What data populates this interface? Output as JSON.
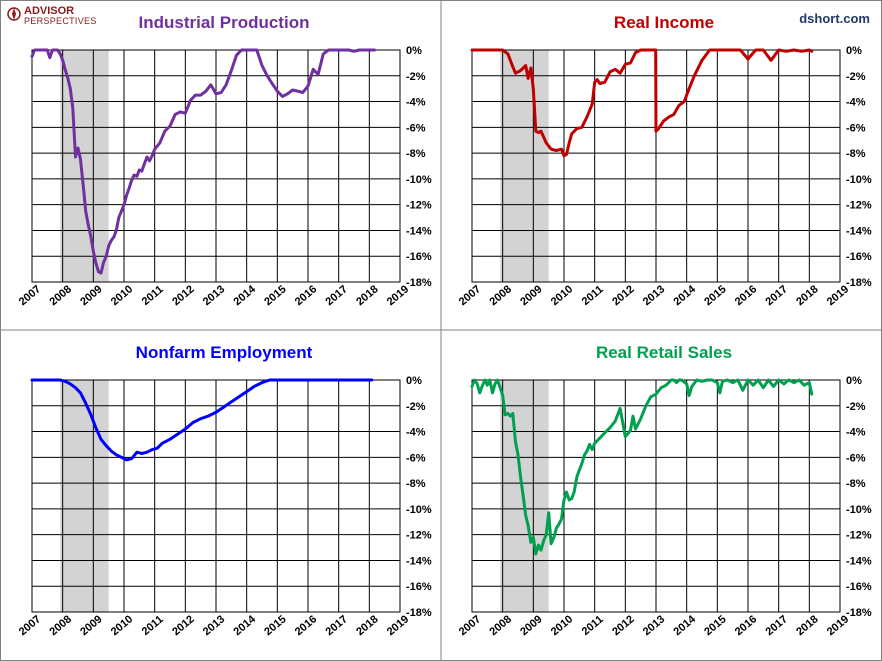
{
  "branding": {
    "logo_line1": "ADVISOR",
    "logo_line2": "PERSPECTIVES",
    "credit": "dshort.com",
    "colors": {
      "logo": "#8b1a1a",
      "credit": "#1f3a6b"
    }
  },
  "recession": {
    "start": 2007.92,
    "end": 2009.5,
    "color": "#d3d3d3"
  },
  "chart_data": [
    {
      "type": "line",
      "title": "Industrial Production",
      "color": "#7030a0",
      "x_ticks": [
        "2007",
        "2008",
        "2009",
        "2010",
        "2011",
        "2012",
        "2013",
        "2014",
        "2015",
        "2016",
        "2017",
        "2018",
        "2019"
      ],
      "y_ticks": [
        "0%",
        "-2%",
        "-4%",
        "-6%",
        "-8%",
        "-10%",
        "-12%",
        "-14%",
        "-16%",
        "-18%"
      ],
      "xlim": [
        2007,
        2019
      ],
      "ylim": [
        -18,
        0
      ],
      "series": [
        {
          "name": "Industrial Production (% off high)",
          "x": [
            2007.0,
            2007.08,
            2007.17,
            2007.25,
            2007.33,
            2007.5,
            2007.58,
            2007.67,
            2007.75,
            2007.83,
            2007.92,
            2008.0,
            2008.08,
            2008.17,
            2008.25,
            2008.33,
            2008.42,
            2008.5,
            2008.58,
            2008.67,
            2008.75,
            2008.83,
            2008.92,
            2009.0,
            2009.08,
            2009.17,
            2009.25,
            2009.33,
            2009.42,
            2009.5,
            2009.58,
            2009.67,
            2009.75,
            2009.83,
            2009.92,
            2010.0,
            2010.08,
            2010.17,
            2010.25,
            2010.33,
            2010.42,
            2010.5,
            2010.58,
            2010.67,
            2010.75,
            2010.83,
            2010.92,
            2011.0,
            2011.17,
            2011.33,
            2011.5,
            2011.67,
            2011.83,
            2012.0,
            2012.17,
            2012.33,
            2012.5,
            2012.67,
            2012.83,
            2013.0,
            2013.17,
            2013.33,
            2013.5,
            2013.67,
            2013.83,
            2014.0,
            2014.17,
            2014.33,
            2014.5,
            2014.67,
            2014.83,
            2015.0,
            2015.17,
            2015.33,
            2015.5,
            2015.67,
            2015.83,
            2016.0,
            2016.17,
            2016.33,
            2016.5,
            2016.67,
            2016.83,
            2017.0,
            2017.17,
            2017.33,
            2017.5,
            2017.67,
            2017.75,
            2017.83,
            2017.92,
            2018.0,
            2018.08,
            2018.17
          ],
          "values": [
            -0.5,
            0,
            0,
            0,
            0,
            0,
            -0.6,
            0,
            0,
            0,
            -0.3,
            -0.8,
            -1.5,
            -2.2,
            -3.0,
            -4.5,
            -8.3,
            -7.6,
            -8.5,
            -10.5,
            -12.5,
            -13.5,
            -14.5,
            -15.6,
            -16.5,
            -17.2,
            -17.3,
            -16.5,
            -16.0,
            -15.2,
            -14.8,
            -14.5,
            -14.0,
            -13.0,
            -12.5,
            -12.0,
            -11.3,
            -10.7,
            -10.1,
            -9.7,
            -9.8,
            -9.3,
            -9.4,
            -8.8,
            -8.3,
            -8.6,
            -8.2,
            -7.7,
            -7.2,
            -6.3,
            -5.9,
            -5.0,
            -4.8,
            -4.9,
            -3.9,
            -3.5,
            -3.5,
            -3.2,
            -2.7,
            -3.4,
            -3.3,
            -2.7,
            -1.6,
            -0.4,
            0,
            0,
            0,
            0,
            -1.2,
            -2.0,
            -2.6,
            -3.2,
            -3.6,
            -3.4,
            -3.1,
            -3.2,
            -3.3,
            -2.8,
            -1.5,
            -1.9,
            -0.3,
            0,
            0,
            0,
            0,
            0,
            -0.1,
            0,
            0,
            0,
            0,
            0,
            0,
            0
          ]
        }
      ]
    },
    {
      "type": "line",
      "title": "Real Income",
      "color": "#c00000",
      "x_ticks": [
        "2007",
        "2008",
        "2009",
        "2010",
        "2011",
        "2012",
        "2013",
        "2014",
        "2015",
        "2016",
        "2017",
        "2018",
        "2019"
      ],
      "y_ticks": [
        "0%",
        "-2%",
        "-4%",
        "-6%",
        "-8%",
        "-10%",
        "-12%",
        "-14%",
        "-16%",
        "-18%"
      ],
      "xlim": [
        2007,
        2019
      ],
      "ylim": [
        -18,
        0
      ],
      "series": [
        {
          "name": "Real Income (% off high)",
          "x": [
            2007.0,
            2007.25,
            2007.5,
            2007.75,
            2008.0,
            2008.17,
            2008.33,
            2008.42,
            2008.5,
            2008.58,
            2008.67,
            2008.75,
            2008.83,
            2008.92,
            2009.0,
            2009.08,
            2009.17,
            2009.25,
            2009.42,
            2009.58,
            2009.75,
            2009.92,
            2010.0,
            2010.08,
            2010.17,
            2010.25,
            2010.42,
            2010.58,
            2010.75,
            2010.92,
            2011.0,
            2011.08,
            2011.17,
            2011.33,
            2011.5,
            2011.67,
            2011.83,
            2012.0,
            2012.17,
            2012.33,
            2012.5,
            2012.67,
            2012.83,
            2012.92,
            2012.99,
            2013.0,
            2013.08,
            2013.25,
            2013.42,
            2013.58,
            2013.75,
            2013.92,
            2014.08,
            2014.25,
            2014.5,
            2014.75,
            2015.0,
            2015.25,
            2015.5,
            2015.75,
            2016.0,
            2016.25,
            2016.5,
            2016.75,
            2017.0,
            2017.25,
            2017.5,
            2017.75,
            2018.0,
            2018.08
          ],
          "values": [
            0,
            0,
            0,
            0,
            0,
            -0.3,
            -1.3,
            -1.8,
            -1.7,
            -1.6,
            -1.4,
            -1.2,
            -2.2,
            -1.4,
            -3.0,
            -6.3,
            -6.4,
            -6.3,
            -7.2,
            -7.7,
            -7.8,
            -7.7,
            -8.2,
            -8.1,
            -7.2,
            -6.5,
            -6.1,
            -6.0,
            -5.2,
            -4.2,
            -2.5,
            -2.3,
            -2.6,
            -2.5,
            -1.7,
            -1.5,
            -1.8,
            -1.1,
            -1.0,
            -0.2,
            0,
            0,
            0,
            0,
            0,
            -6.3,
            -6.1,
            -5.5,
            -5.2,
            -5.0,
            -4.3,
            -4.0,
            -3.0,
            -2.0,
            -0.8,
            0,
            0,
            0,
            0,
            0,
            -0.7,
            0,
            0,
            -0.8,
            0,
            -0.1,
            0,
            -0.1,
            0,
            -0.1
          ]
        }
      ]
    },
    {
      "type": "line",
      "title": "Nonfarm Employment",
      "color": "#0000ff",
      "x_ticks": [
        "2007",
        "2008",
        "2009",
        "2010",
        "2011",
        "2012",
        "2013",
        "2014",
        "2015",
        "2016",
        "2017",
        "2018",
        "2019"
      ],
      "y_ticks": [
        "0%",
        "-2%",
        "-4%",
        "-6%",
        "-8%",
        "-10%",
        "-12%",
        "-14%",
        "-16%",
        "-18%"
      ],
      "xlim": [
        2007,
        2019
      ],
      "ylim": [
        -18,
        0
      ],
      "series": [
        {
          "name": "Nonfarm Employment (% off high)",
          "x": [
            2007.0,
            2007.5,
            2007.92,
            2008.08,
            2008.25,
            2008.42,
            2008.58,
            2008.75,
            2008.92,
            2009.08,
            2009.25,
            2009.42,
            2009.58,
            2009.75,
            2009.92,
            2010.08,
            2010.25,
            2010.42,
            2010.58,
            2010.75,
            2010.92,
            2011.08,
            2011.25,
            2011.5,
            2011.75,
            2012.0,
            2012.25,
            2012.5,
            2012.75,
            2013.0,
            2013.25,
            2013.5,
            2013.75,
            2014.0,
            2014.25,
            2014.5,
            2014.75,
            2015.0,
            2016.0,
            2017.0,
            2018.0,
            2018.08
          ],
          "values": [
            0,
            0,
            0,
            -0.1,
            -0.3,
            -0.6,
            -1.0,
            -1.8,
            -2.7,
            -3.7,
            -4.6,
            -5.1,
            -5.5,
            -5.8,
            -6.0,
            -6.2,
            -6.1,
            -5.6,
            -5.7,
            -5.6,
            -5.4,
            -5.3,
            -4.9,
            -4.6,
            -4.2,
            -3.8,
            -3.3,
            -3.0,
            -2.8,
            -2.5,
            -2.1,
            -1.7,
            -1.3,
            -0.9,
            -0.5,
            -0.2,
            0,
            0,
            0,
            0,
            0,
            0
          ]
        }
      ]
    },
    {
      "type": "line",
      "title": "Real Retail Sales",
      "color": "#00a050",
      "x_ticks": [
        "2007",
        "2008",
        "2009",
        "2010",
        "2011",
        "2012",
        "2013",
        "2014",
        "2015",
        "2016",
        "2017",
        "2018",
        "2019"
      ],
      "y_ticks": [
        "0%",
        "-2%",
        "-4%",
        "-6%",
        "-8%",
        "-10%",
        "-12%",
        "-14%",
        "-16%",
        "-18%"
      ],
      "xlim": [
        2007,
        2019
      ],
      "ylim": [
        -18,
        0
      ],
      "series": [
        {
          "name": "Real Retail Sales (% off high)",
          "x": [
            2007.0,
            2007.08,
            2007.17,
            2007.25,
            2007.33,
            2007.42,
            2007.5,
            2007.58,
            2007.67,
            2007.75,
            2007.83,
            2007.92,
            2008.0,
            2008.08,
            2008.17,
            2008.25,
            2008.33,
            2008.42,
            2008.5,
            2008.58,
            2008.67,
            2008.75,
            2008.83,
            2008.92,
            2009.0,
            2009.08,
            2009.17,
            2009.25,
            2009.33,
            2009.42,
            2009.5,
            2009.58,
            2009.67,
            2009.75,
            2009.83,
            2009.92,
            2010.0,
            2010.08,
            2010.17,
            2010.25,
            2010.33,
            2010.42,
            2010.5,
            2010.58,
            2010.67,
            2010.75,
            2010.83,
            2010.92,
            2011.0,
            2011.17,
            2011.33,
            2011.5,
            2011.67,
            2011.83,
            2012.0,
            2012.17,
            2012.25,
            2012.33,
            2012.5,
            2012.67,
            2012.83,
            2013.0,
            2013.17,
            2013.33,
            2013.5,
            2013.58,
            2013.67,
            2013.75,
            2013.83,
            2014.0,
            2014.08,
            2014.17,
            2014.33,
            2014.5,
            2014.67,
            2014.83,
            2015.0,
            2015.08,
            2015.17,
            2015.33,
            2015.5,
            2015.67,
            2015.83,
            2016.0,
            2016.17,
            2016.33,
            2016.5,
            2016.67,
            2016.83,
            2017.0,
            2017.17,
            2017.33,
            2017.5,
            2017.67,
            2017.83,
            2018.0,
            2018.08
          ],
          "values": [
            -0.5,
            0,
            -0.3,
            -1.0,
            -0.5,
            0,
            -0.4,
            0,
            -1.0,
            -0.3,
            0,
            -0.6,
            -1.2,
            -2.7,
            -2.6,
            -2.8,
            -2.6,
            -4.8,
            -5.8,
            -7.5,
            -9.0,
            -10.5,
            -11.3,
            -12.6,
            -12.2,
            -13.5,
            -12.8,
            -13.2,
            -12.5,
            -12.0,
            -10.3,
            -12.7,
            -12.2,
            -11.5,
            -11.2,
            -10.8,
            -9.3,
            -8.7,
            -9.3,
            -9.2,
            -8.7,
            -7.5,
            -7.0,
            -6.5,
            -5.8,
            -5.5,
            -5.0,
            -5.4,
            -4.9,
            -4.5,
            -4.1,
            -3.7,
            -3.2,
            -2.2,
            -4.4,
            -3.9,
            -2.8,
            -3.8,
            -3.0,
            -2.0,
            -1.3,
            -1.1,
            -0.6,
            -0.4,
            0,
            0,
            -0.2,
            0,
            0,
            -0.3,
            -1.2,
            -0.5,
            0,
            -0.1,
            0,
            0,
            -0.2,
            -1.0,
            -0.1,
            0,
            -0.2,
            0,
            -0.8,
            0,
            -0.4,
            0,
            -0.6,
            0,
            -0.5,
            0,
            -0.3,
            0,
            -0.2,
            0,
            -0.4,
            -0.2,
            -1.1
          ]
        }
      ]
    }
  ]
}
